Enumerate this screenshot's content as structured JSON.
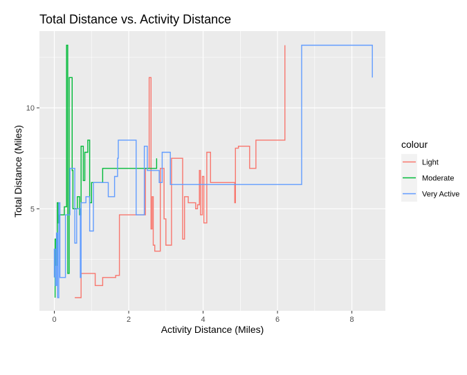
{
  "chart_data": {
    "type": "line",
    "title": "Total Distance vs. Activity Distance",
    "xlabel": "Activity Distance (Miles)",
    "ylabel": "Total Distance (Miles)",
    "xlim": [
      -0.4,
      8.9
    ],
    "ylim": [
      -0.05,
      13.8
    ],
    "x_ticks": [
      0,
      2,
      4,
      6,
      8
    ],
    "y_ticks": [
      5,
      10
    ],
    "grid": true,
    "legend": {
      "title": "colour",
      "position": "right"
    },
    "colors": {
      "Light": "#F8766D",
      "Moderate": "#00BA38",
      "Very Active": "#619CFF"
    },
    "series": [
      {
        "name": "Light",
        "points": [
          [
            0.55,
            0.6
          ],
          [
            0.72,
            0.6
          ],
          [
            0.72,
            1.8
          ],
          [
            1.1,
            1.8
          ],
          [
            1.1,
            1.2
          ],
          [
            1.3,
            1.2
          ],
          [
            1.3,
            1.6
          ],
          [
            1.65,
            1.6
          ],
          [
            1.65,
            1.7
          ],
          [
            1.75,
            1.7
          ],
          [
            1.75,
            4.7
          ],
          [
            2.45,
            4.7
          ],
          [
            2.45,
            7.0
          ],
          [
            2.55,
            7.0
          ],
          [
            2.55,
            11.5
          ],
          [
            2.6,
            11.5
          ],
          [
            2.6,
            4.0
          ],
          [
            2.63,
            4.0
          ],
          [
            2.63,
            5.6
          ],
          [
            2.66,
            5.6
          ],
          [
            2.66,
            3.2
          ],
          [
            2.7,
            3.2
          ],
          [
            2.7,
            2.9
          ],
          [
            2.85,
            2.9
          ],
          [
            2.85,
            7.0
          ],
          [
            2.95,
            7.0
          ],
          [
            2.95,
            4.5
          ],
          [
            3.0,
            4.5
          ],
          [
            3.0,
            3.2
          ],
          [
            3.15,
            3.2
          ],
          [
            3.15,
            7.5
          ],
          [
            3.45,
            7.5
          ],
          [
            3.45,
            3.5
          ],
          [
            3.5,
            3.5
          ],
          [
            3.5,
            5.6
          ],
          [
            3.6,
            5.6
          ],
          [
            3.6,
            5.3
          ],
          [
            3.8,
            5.3
          ],
          [
            3.8,
            5.0
          ],
          [
            3.85,
            5.0
          ],
          [
            3.85,
            5.2
          ],
          [
            3.9,
            5.2
          ],
          [
            3.9,
            6.9
          ],
          [
            3.93,
            6.9
          ],
          [
            3.93,
            4.7
          ],
          [
            3.98,
            4.7
          ],
          [
            3.98,
            6.6
          ],
          [
            4.02,
            6.6
          ],
          [
            4.02,
            4.3
          ],
          [
            4.1,
            4.3
          ],
          [
            4.1,
            7.8
          ],
          [
            4.2,
            7.8
          ],
          [
            4.2,
            6.3
          ],
          [
            4.85,
            6.3
          ],
          [
            4.85,
            5.3
          ],
          [
            4.87,
            5.3
          ],
          [
            4.87,
            8.0
          ],
          [
            4.95,
            8.0
          ],
          [
            4.95,
            8.1
          ],
          [
            5.25,
            8.1
          ],
          [
            5.25,
            7.0
          ],
          [
            5.42,
            7.0
          ],
          [
            5.42,
            8.4
          ],
          [
            6.2,
            8.4
          ],
          [
            6.2,
            13.1
          ]
        ]
      },
      {
        "name": "Moderate",
        "points": [
          [
            0.02,
            0.6
          ],
          [
            0.02,
            3.5
          ],
          [
            0.05,
            3.5
          ],
          [
            0.05,
            2.2
          ],
          [
            0.08,
            2.2
          ],
          [
            0.08,
            5.3
          ],
          [
            0.11,
            5.3
          ],
          [
            0.11,
            4.3
          ],
          [
            0.14,
            4.3
          ],
          [
            0.14,
            4.7
          ],
          [
            0.27,
            4.7
          ],
          [
            0.27,
            5.1
          ],
          [
            0.33,
            5.1
          ],
          [
            0.33,
            13.1
          ],
          [
            0.36,
            13.1
          ],
          [
            0.36,
            1.8
          ],
          [
            0.4,
            1.8
          ],
          [
            0.4,
            11.5
          ],
          [
            0.48,
            11.5
          ],
          [
            0.48,
            6.9
          ],
          [
            0.5,
            6.9
          ],
          [
            0.5,
            5.0
          ],
          [
            0.62,
            5.0
          ],
          [
            0.62,
            5.6
          ],
          [
            0.68,
            5.6
          ],
          [
            0.68,
            4.7
          ],
          [
            0.72,
            4.7
          ],
          [
            0.72,
            8.1
          ],
          [
            0.78,
            8.1
          ],
          [
            0.78,
            6.4
          ],
          [
            0.82,
            6.4
          ],
          [
            0.82,
            7.8
          ],
          [
            0.9,
            7.8
          ],
          [
            0.9,
            8.4
          ],
          [
            0.95,
            8.4
          ],
          [
            0.95,
            5.3
          ],
          [
            1.0,
            5.3
          ],
          [
            1.0,
            6.3
          ],
          [
            1.3,
            6.3
          ],
          [
            1.3,
            7.0
          ],
          [
            2.75,
            7.0
          ],
          [
            2.75,
            7.5
          ]
        ]
      },
      {
        "name": "Very Active",
        "points": [
          [
            0.0,
            1.6
          ],
          [
            0.0,
            3.0
          ],
          [
            0.03,
            3.0
          ],
          [
            0.03,
            1.2
          ],
          [
            0.06,
            1.2
          ],
          [
            0.06,
            3.8
          ],
          [
            0.09,
            3.8
          ],
          [
            0.09,
            0.6
          ],
          [
            0.12,
            0.6
          ],
          [
            0.12,
            5.3
          ],
          [
            0.15,
            5.3
          ],
          [
            0.15,
            1.6
          ],
          [
            0.3,
            1.6
          ],
          [
            0.3,
            4.7
          ],
          [
            0.42,
            4.7
          ],
          [
            0.42,
            7.0
          ],
          [
            0.55,
            7.0
          ],
          [
            0.55,
            3.3
          ],
          [
            0.6,
            3.3
          ],
          [
            0.6,
            5.0
          ],
          [
            0.7,
            5.0
          ],
          [
            0.7,
            1.6
          ],
          [
            0.72,
            1.6
          ],
          [
            0.72,
            5.3
          ],
          [
            0.85,
            5.3
          ],
          [
            0.85,
            5.6
          ],
          [
            0.95,
            5.6
          ],
          [
            0.95,
            3.9
          ],
          [
            1.05,
            3.9
          ],
          [
            1.05,
            6.3
          ],
          [
            1.45,
            6.3
          ],
          [
            1.45,
            5.6
          ],
          [
            1.62,
            5.6
          ],
          [
            1.62,
            6.6
          ],
          [
            1.7,
            6.6
          ],
          [
            1.7,
            7.5
          ],
          [
            1.72,
            7.5
          ],
          [
            1.72,
            8.4
          ],
          [
            2.2,
            8.4
          ],
          [
            2.2,
            4.7
          ],
          [
            2.42,
            4.7
          ],
          [
            2.42,
            8.1
          ],
          [
            2.5,
            8.1
          ],
          [
            2.5,
            6.9
          ],
          [
            2.82,
            6.9
          ],
          [
            2.82,
            6.3
          ],
          [
            2.9,
            6.3
          ],
          [
            2.9,
            7.8
          ],
          [
            3.12,
            7.8
          ],
          [
            3.12,
            6.2
          ],
          [
            6.65,
            6.2
          ],
          [
            6.65,
            13.1
          ],
          [
            8.55,
            13.1
          ],
          [
            8.55,
            11.5
          ]
        ]
      }
    ]
  }
}
